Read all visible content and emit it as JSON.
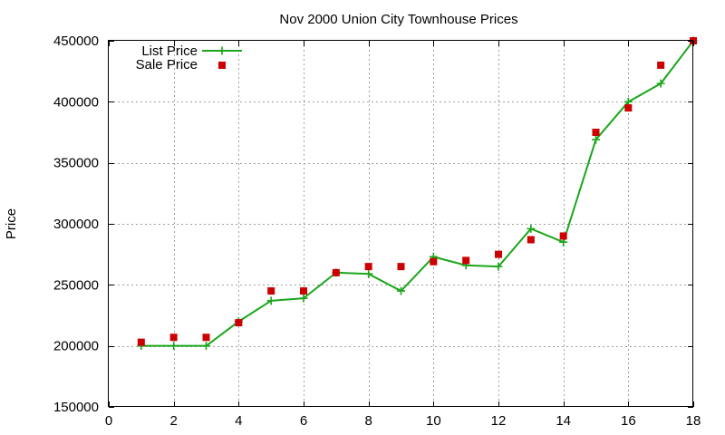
{
  "chart_data": {
    "type": "line",
    "title": "Nov 2000 Union City Townhouse Prices",
    "xlabel": "",
    "ylabel": "Price",
    "xlim": [
      0,
      18
    ],
    "ylim": [
      150000,
      450000
    ],
    "xticks": [
      0,
      2,
      4,
      6,
      8,
      10,
      12,
      14,
      16,
      18
    ],
    "yticks": [
      150000,
      200000,
      250000,
      300000,
      350000,
      400000,
      450000
    ],
    "grid": true,
    "legend_position": "top-left",
    "series": [
      {
        "name": "List Price",
        "style": "line+points",
        "color": "#1aa61a",
        "x": [
          1,
          2,
          3,
          4,
          5,
          6,
          7,
          8,
          9,
          10,
          11,
          12,
          13,
          14,
          15,
          16,
          17,
          18
        ],
        "y": [
          200000,
          200000,
          200000,
          220000,
          237000,
          239000,
          260000,
          259000,
          245000,
          273000,
          266000,
          265000,
          296000,
          285000,
          369000,
          400000,
          415000,
          450000
        ]
      },
      {
        "name": "Sale Price",
        "style": "points",
        "color": "#cc0000",
        "x": [
          1,
          2,
          3,
          4,
          5,
          6,
          7,
          8,
          9,
          10,
          11,
          12,
          13,
          14,
          15,
          16,
          17,
          18
        ],
        "y": [
          203000,
          207000,
          207000,
          219000,
          245000,
          245000,
          260000,
          265000,
          265000,
          269000,
          270000,
          275000,
          287000,
          290000,
          375000,
          395000,
          430000,
          450000
        ]
      }
    ]
  }
}
